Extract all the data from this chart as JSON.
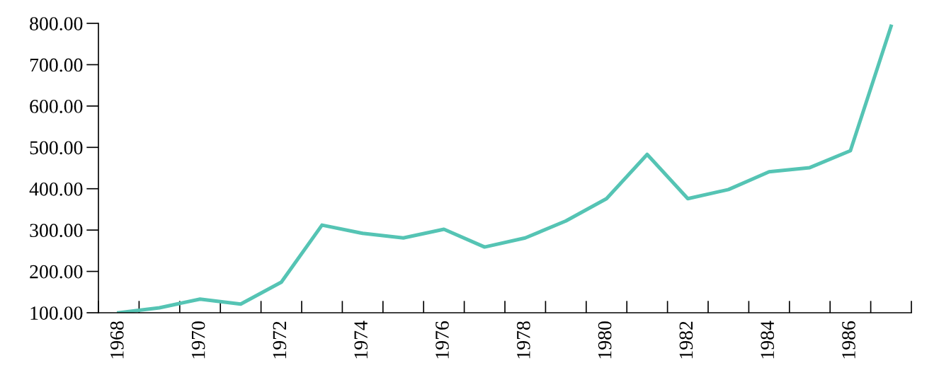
{
  "chart_data": {
    "type": "line",
    "categories": [
      "1968",
      null,
      "1970",
      null,
      "1972",
      null,
      "1974",
      null,
      "1976",
      null,
      "1978",
      null,
      "1980",
      null,
      "1982",
      null,
      "1984",
      null,
      "1986",
      null
    ],
    "series": [
      {
        "color": "#55c4b4",
        "values": [
          100,
          112,
          133,
          121,
          174,
          312,
          292,
          281,
          302,
          259,
          281,
          322,
          376,
          483,
          376,
          398,
          441,
          451,
          492,
          793
        ]
      }
    ],
    "ylim": [
      100,
      800
    ],
    "yticks": [
      {
        "value": 100,
        "label": "100.00"
      },
      {
        "value": 200,
        "label": "200.00"
      },
      {
        "value": 300,
        "label": "300.00"
      },
      {
        "value": 400,
        "label": "400.00"
      },
      {
        "value": 500,
        "label": "500.00"
      },
      {
        "value": 600,
        "label": "600.00"
      },
      {
        "value": 700,
        "label": "700.00"
      },
      {
        "value": 800,
        "label": "800.00"
      }
    ],
    "grid": false,
    "legend": false,
    "marker": "none",
    "line_style": "solid"
  }
}
